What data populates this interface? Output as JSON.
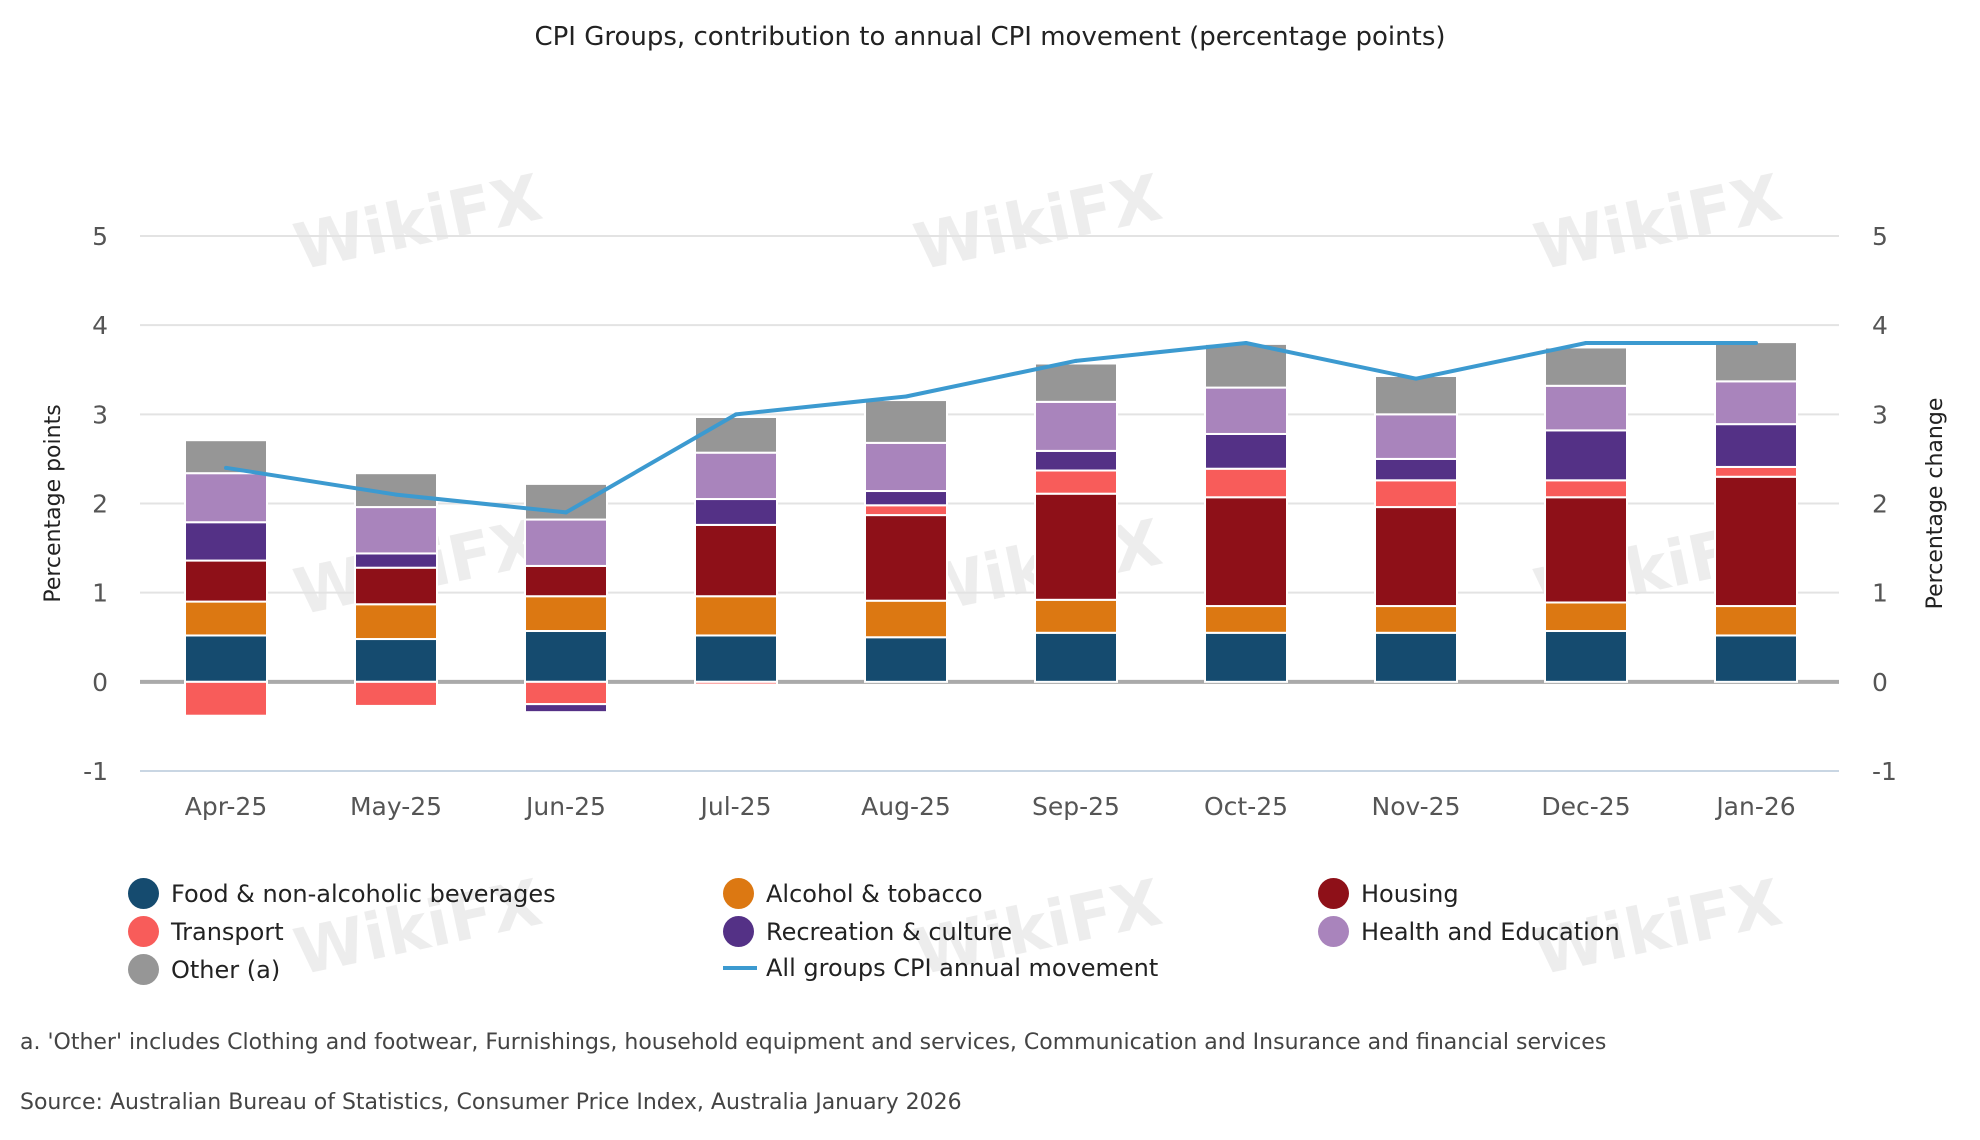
{
  "watermark": "WikiFX",
  "chart_data": {
    "type": "bar",
    "stacked": true,
    "title": "CPI Groups, contribution to annual CPI movement (percentage points)",
    "ylabel": "Percentage points",
    "y2label": "Percentage change",
    "ylim": [
      -1,
      5
    ],
    "y2lim": [
      -1,
      5
    ],
    "yticks": [
      "-1",
      "0",
      "1",
      "2",
      "3",
      "4",
      "5"
    ],
    "grid": true,
    "legend_position": "bottom",
    "categories": [
      "Apr-25",
      "May-25",
      "Jun-25",
      "Jul-25",
      "Aug-25",
      "Sep-25",
      "Oct-25",
      "Nov-25",
      "Dec-25",
      "Jan-26"
    ],
    "series": [
      {
        "name": "Food & non-alcoholic beverages",
        "color": "#154b6f",
        "values": [
          0.52,
          0.48,
          0.57,
          0.52,
          0.5,
          0.55,
          0.55,
          0.55,
          0.57,
          0.52
        ]
      },
      {
        "name": "Alcohol & tobacco",
        "color": "#dc7812",
        "values": [
          0.38,
          0.39,
          0.39,
          0.44,
          0.41,
          0.37,
          0.3,
          0.3,
          0.32,
          0.33
        ]
      },
      {
        "name": "Housing",
        "color": "#8e1018",
        "values": [
          0.46,
          0.41,
          0.34,
          0.8,
          0.96,
          1.19,
          1.22,
          1.11,
          1.18,
          1.45
        ]
      },
      {
        "name": "Transport",
        "color": "#f85c5a",
        "values": [
          -0.38,
          -0.27,
          -0.25,
          -0.03,
          0.11,
          0.26,
          0.32,
          0.3,
          0.19,
          0.11
        ]
      },
      {
        "name": "Recreation & culture",
        "color": "#543186",
        "values": [
          0.43,
          0.16,
          -0.09,
          0.29,
          0.16,
          0.22,
          0.39,
          0.24,
          0.56,
          0.48
        ]
      },
      {
        "name": "Health and Education",
        "color": "#a984bc",
        "values": [
          0.55,
          0.52,
          0.52,
          0.52,
          0.54,
          0.55,
          0.52,
          0.5,
          0.5,
          0.48
        ]
      },
      {
        "name": "Other (a)",
        "color": "#969696",
        "values": [
          0.37,
          0.38,
          0.4,
          0.4,
          0.48,
          0.43,
          0.49,
          0.43,
          0.43,
          0.44
        ]
      }
    ],
    "line_series": {
      "name": "All groups CPI annual movement",
      "color": "#3c9ad0",
      "axis": "right",
      "values": [
        2.4,
        2.1,
        1.9,
        3.0,
        3.2,
        3.6,
        3.8,
        3.4,
        3.8,
        3.8
      ]
    }
  },
  "legend_order": [
    0,
    2,
    4,
    3,
    5,
    6,
    1
  ],
  "footnote": "a. 'Other' includes Clothing and footwear, Furnishings, household equipment and services, Communication and Insurance and financial services",
  "source": "Source: Australian Bureau of Statistics, Consumer Price Index, Australia January 2026"
}
